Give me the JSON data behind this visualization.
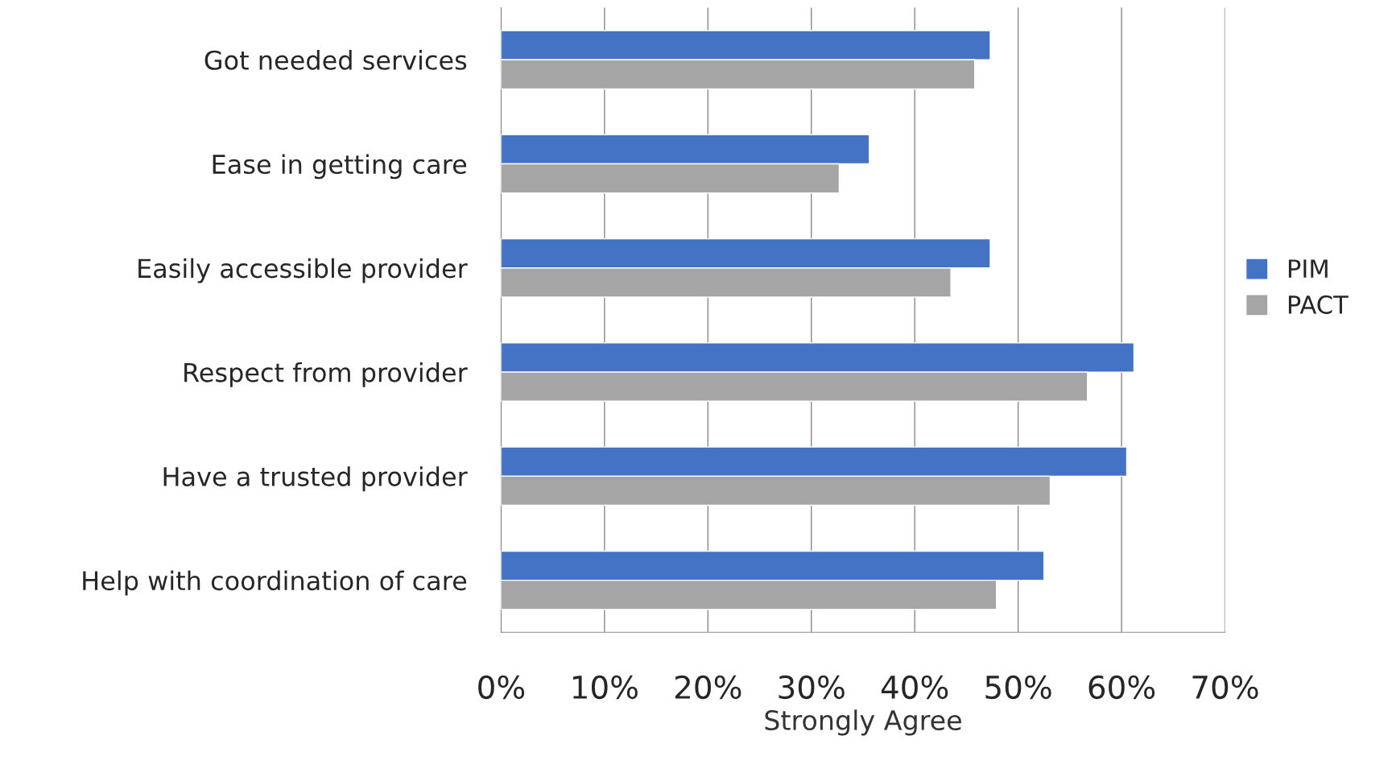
{
  "chart_data": {
    "type": "bar",
    "orientation": "horizontal",
    "xlabel": "Strongly Agree",
    "categories": [
      "Got needed services",
      "Ease in getting care",
      "Easily accessible provider",
      "Respect from provider",
      "Have a trusted provider",
      "Help with coordination of care"
    ],
    "series": [
      {
        "name": "PIM",
        "color": "#4472c4",
        "values": [
          47.3,
          35.6,
          47.3,
          61.2,
          60.5,
          52.5
        ]
      },
      {
        "name": "PACT",
        "color": "#a5a5a5",
        "values": [
          45.8,
          32.7,
          43.5,
          56.7,
          53.1,
          47.9
        ]
      }
    ],
    "xlim": [
      0,
      70
    ],
    "xticks": [
      {
        "value": 0,
        "label": "0%"
      },
      {
        "value": 10,
        "label": "10%"
      },
      {
        "value": 20,
        "label": "20%"
      },
      {
        "value": 30,
        "label": "30%"
      },
      {
        "value": 40,
        "label": "40%"
      },
      {
        "value": 50,
        "label": "50%"
      },
      {
        "value": 60,
        "label": "60%"
      },
      {
        "value": 70,
        "label": "70%"
      }
    ],
    "grid": "x",
    "legend": "right"
  }
}
